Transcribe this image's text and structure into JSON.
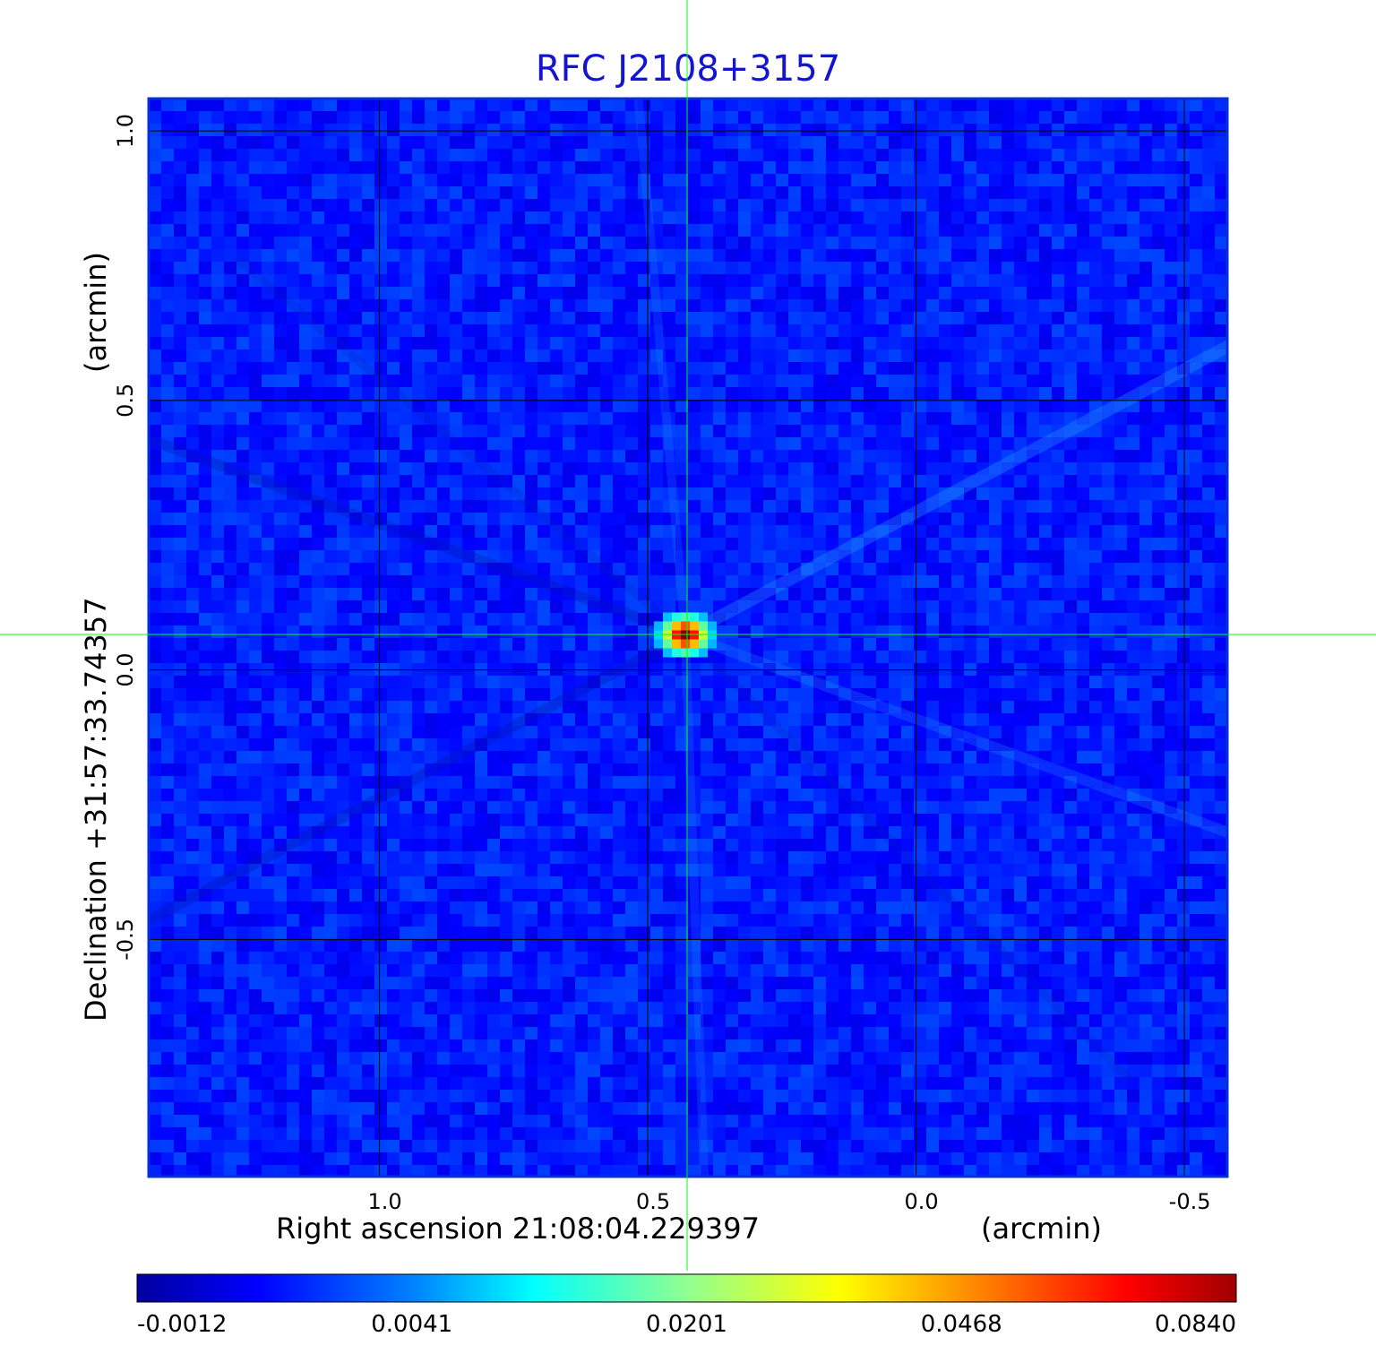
{
  "chart_data": {
    "type": "heatmap",
    "title": "RFC J2108+3157",
    "xlabel": "Right ascension  21:08:04.229397",
    "xunit": "(arcmin)",
    "ylabel": "Declination  +31:57:33.74357",
    "yunit": "(arcmin)",
    "x_ticks": [
      1.0,
      0.5,
      0.0,
      -0.5
    ],
    "x_tick_labels": [
      "1.0",
      "0.5",
      "0.0",
      "-0.5"
    ],
    "y_ticks": [
      1.0,
      0.5,
      0.0,
      -0.5
    ],
    "y_tick_labels": [
      "1.0",
      "0.5",
      "0.0",
      "-0.5"
    ],
    "xlim": [
      1.43,
      -0.58
    ],
    "ylim": [
      -0.94,
      1.06
    ],
    "grid": true,
    "crosshair": {
      "x": 0.43,
      "y": 0.065,
      "color": "#00ff00"
    },
    "colorbar": {
      "ticks": [
        -0.0012,
        0.0041,
        0.0201,
        0.0468,
        0.084
      ],
      "tick_labels": [
        "-0.0012",
        "0.0041",
        "0.0201",
        "0.0468",
        "0.0840"
      ],
      "colormap": "jet"
    },
    "source_peak": {
      "x": 0.43,
      "y": 0.065,
      "value": 0.084
    },
    "background_level": 0.0012
  },
  "colors": {
    "title": "#1414d2",
    "grid": "#000000",
    "crosshair": "#00ff00",
    "background": "#0a46ef"
  }
}
